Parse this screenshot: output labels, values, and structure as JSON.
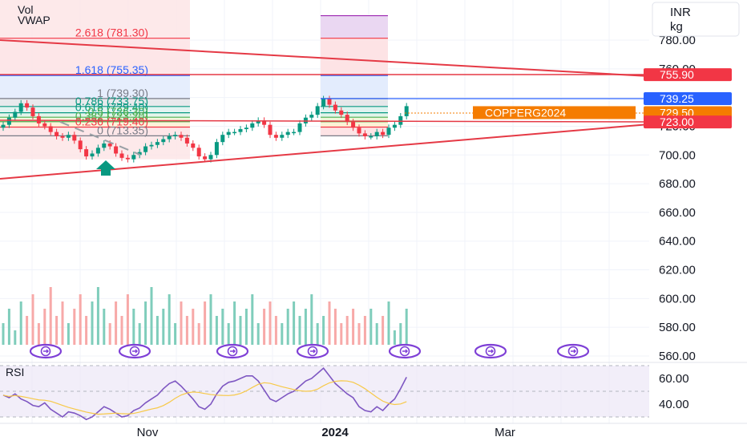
{
  "legend": {
    "vol": "Vol",
    "vwap": "VWAP",
    "rsi": "RSI"
  },
  "currency": {
    "unit_top": "INR",
    "unit_bottom": "kg"
  },
  "chart_data": {
    "type": "candlestick",
    "y_axis": {
      "ticks": [
        "780.00",
        "760.00",
        "740.00",
        "720.00",
        "700.00",
        "680.00",
        "660.00",
        "640.00",
        "620.00",
        "600.00",
        "580.00",
        "560.00"
      ],
      "tick_values": [
        780,
        760,
        740,
        720,
        700,
        680,
        660,
        640,
        620,
        600,
        580,
        560
      ]
    },
    "x_axis": {
      "labels": [
        "Nov",
        "2024",
        "Mar"
      ]
    },
    "price_tags": [
      {
        "label": "755.90",
        "value": 755.9,
        "color": "#f23645"
      },
      {
        "label": "739.25",
        "value": 739.25,
        "color": "#2962ff"
      },
      {
        "label": "729.50",
        "value": 729.5,
        "color": "#f57c00"
      },
      {
        "label": "723.00",
        "value": 723.0,
        "color": "#f23645"
      }
    ],
    "symbol_tag": {
      "label": "COPPERG2024",
      "color": "#f57c00"
    },
    "fib_left": [
      {
        "label": "2.618 (781.30)",
        "value": 781.3,
        "color": "#f23645"
      },
      {
        "label": "1.618 (755.35)",
        "value": 755.35,
        "color": "#2962ff"
      },
      {
        "label": "1 (739.30)",
        "value": 739.3,
        "color": "#787b86"
      },
      {
        "label": "0.786 (733.75)",
        "value": 733.75,
        "color": "#089981"
      },
      {
        "label": "0.618 (729.40)",
        "value": 729.4,
        "color": "#089981"
      },
      {
        "label": "0.5 (726.30)",
        "value": 726.3,
        "color": "#4caf50"
      },
      {
        "label": "0.382 (723.20)",
        "value": 723.2,
        "color": "#4caf50"
      },
      {
        "label": "0.236 (719.40)",
        "value": 719.4,
        "color": "#f23645"
      },
      {
        "label": "0 (713.35)",
        "value": 713.35,
        "color": "#787b86"
      }
    ],
    "close_series": [
      721,
      726,
      730,
      736,
      733,
      727,
      722,
      720,
      716,
      713,
      712,
      714,
      710,
      704,
      699,
      701,
      705,
      708,
      706,
      701,
      698,
      697,
      700,
      702,
      706,
      707,
      709,
      711,
      713,
      714,
      712,
      708,
      705,
      699,
      697,
      700,
      709,
      714,
      716,
      716,
      718,
      719,
      722,
      724,
      721,
      714,
      712,
      714,
      716,
      716,
      722,
      726,
      728,
      734,
      739,
      735,
      731,
      728,
      723,
      719,
      715,
      713,
      713,
      716,
      714,
      719,
      721,
      727,
      734
    ],
    "volume_series": [
      3,
      5,
      2,
      6,
      4,
      7,
      3,
      5,
      8,
      4,
      6,
      3,
      5,
      7,
      4,
      6,
      8,
      5,
      3,
      6,
      4,
      7,
      5,
      3,
      6,
      8,
      4,
      5,
      7,
      3,
      6,
      4,
      5,
      3,
      6,
      7,
      4,
      5,
      3,
      6,
      4,
      5,
      7,
      3,
      5,
      6,
      4,
      3,
      5,
      6,
      4,
      5,
      7,
      3,
      4,
      6,
      5,
      3,
      4,
      5,
      3,
      4,
      5,
      3,
      4,
      6,
      2,
      3,
      5
    ],
    "rsi": {
      "ticks": [
        "60.00",
        "40.00"
      ],
      "tick_values": [
        60,
        40
      ],
      "series": [
        47,
        45,
        48,
        44,
        42,
        39,
        38,
        41,
        36,
        33,
        30,
        34,
        33,
        31,
        28,
        30,
        34,
        38,
        36,
        33,
        30,
        31,
        35,
        37,
        41,
        44,
        47,
        52,
        56,
        58,
        54,
        49,
        44,
        38,
        36,
        40,
        48,
        54,
        57,
        58,
        60,
        62,
        62,
        58,
        51,
        44,
        42,
        45,
        48,
        50,
        54,
        58,
        60,
        64,
        68,
        62,
        56,
        52,
        48,
        45,
        38,
        35,
        34,
        38,
        35,
        40,
        44,
        52,
        61
      ]
    }
  }
}
